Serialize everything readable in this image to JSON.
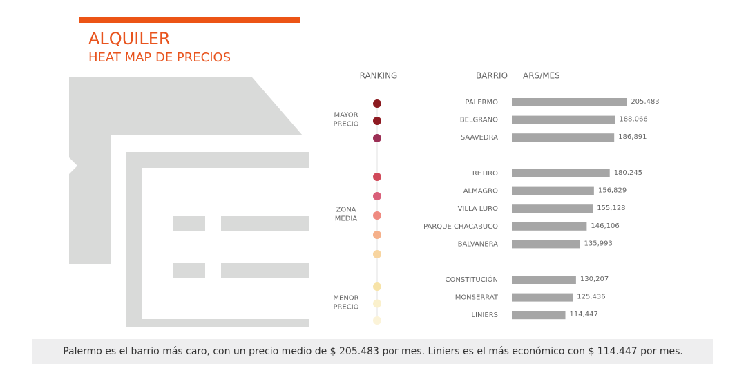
{
  "chart_data": {
    "type": "bar",
    "title": "ALQUILER",
    "subtitle": "HEAT MAP DE PRECIOS",
    "headers": {
      "ranking": "RANKING",
      "category": "BARRIO",
      "value": "ARS/MES"
    },
    "color": "#a6a6a6",
    "xlim": [
      35000,
      240000
    ],
    "groups": [
      {
        "label": "MAYOR PRECIO",
        "categories": [
          "PALERMO",
          "BELGRANO",
          "SAAVEDRA"
        ],
        "values": [
          205483,
          188066,
          186891
        ],
        "value_labels": [
          "205,483",
          "188,066",
          "186,891"
        ],
        "colors": [
          "#8b1a1f",
          "#8e1a22",
          "#9b2f55"
        ]
      },
      {
        "label": "ZONA MEDIA",
        "categories": [
          "RETIRO",
          "ALMAGRO",
          "VILLA LURO",
          "PARQUE CHACABUCO",
          "BALVANERA"
        ],
        "values": [
          180245,
          156829,
          155128,
          146106,
          135993
        ],
        "value_labels": [
          "180,245",
          "156,829",
          "155,128",
          "146,106",
          "135,993"
        ],
        "colors": [
          "#d04a5a",
          "#d9607a",
          "#ef8a80",
          "#f5b08a",
          "#f8d5a0"
        ]
      },
      {
        "label": "MENOR PRECIO",
        "categories": [
          "CONSTITUCIÓN",
          "MONSERRAT",
          "LINIERS"
        ],
        "values": [
          130207,
          125436,
          114447
        ],
        "value_labels": [
          "130,207",
          "125,436",
          "114,447"
        ],
        "colors": [
          "#f7e3a8",
          "#faf0cc",
          "#fbf3d8"
        ]
      }
    ],
    "footer": "Palermo es el barrio más caro, con un precio medio de $ 205.483 por mes. Liniers es el más económico con $ 114.447 por mes."
  }
}
